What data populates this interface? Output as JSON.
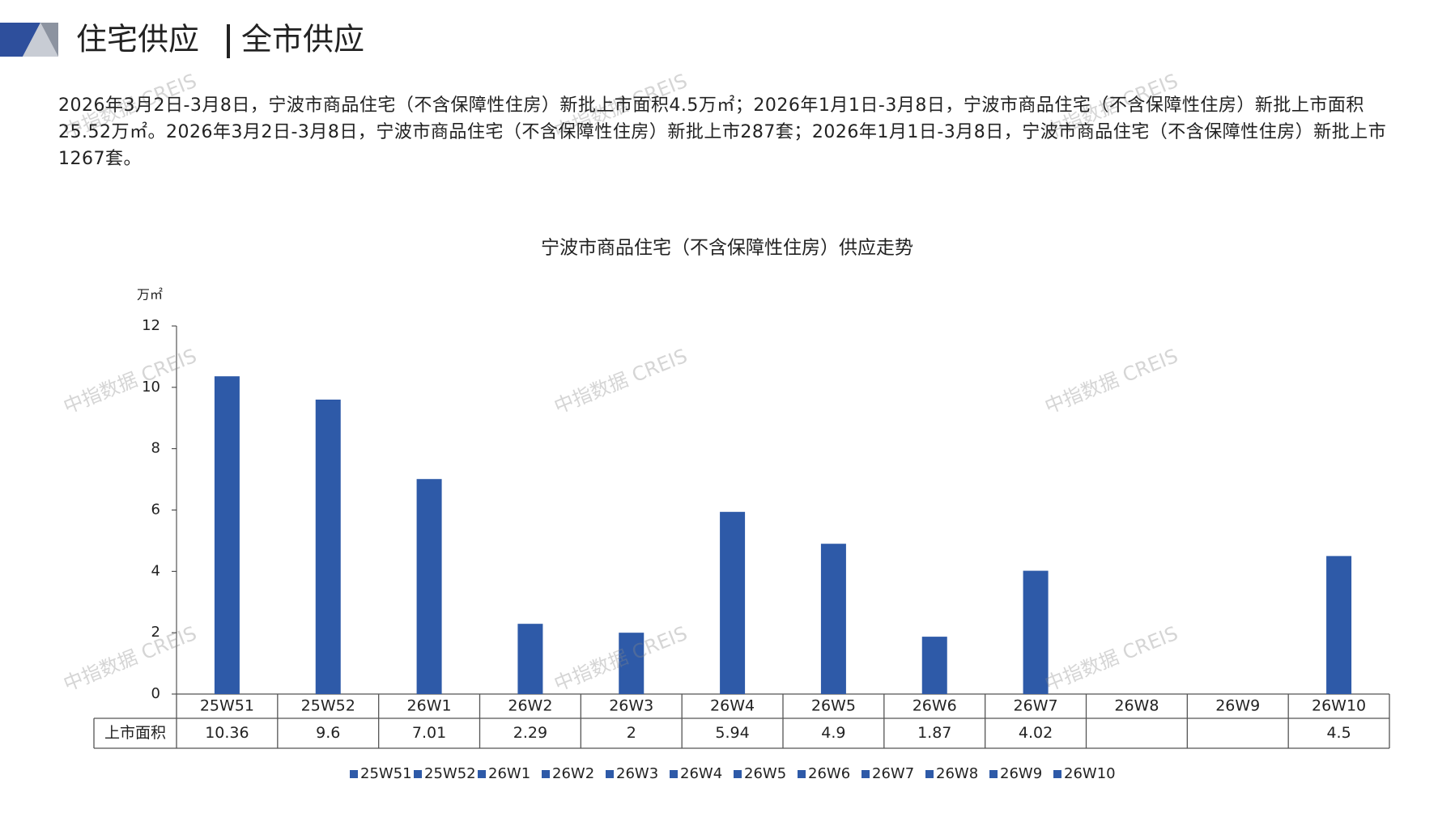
{
  "header": {
    "title_left": "住宅供应",
    "title_right": "全市供应"
  },
  "paragraph": "2026年3月2日-3月8日，宁波市商品住宅（不含保障性住房）新批上市面积4.5万㎡；2026年1月1日-3月8日，宁波市商品住宅（不含保障性住房）新批上市面积25.52万㎡。2026年3月2日-3月8日，宁波市商品住宅（不含保障性住房）新批上市287套；2026年1月1日-3月8日，宁波市商品住宅（不含保障性住房）新批上市1267套。",
  "watermark": "中指数据 CREIS",
  "chart_data": {
    "type": "bar",
    "title": "宁波市商品住宅（不含保障性住房）供应走势",
    "y_unit": "万㎡",
    "series_name": "上市面积",
    "categories": [
      "25W51",
      "25W52",
      "26W1",
      "26W2",
      "26W3",
      "26W4",
      "26W5",
      "26W6",
      "26W7",
      "26W8",
      "26W9",
      "26W10"
    ],
    "values": [
      10.36,
      9.6,
      7.01,
      2.29,
      2,
      5.94,
      4.9,
      1.87,
      4.02,
      null,
      null,
      4.5
    ],
    "color": "#2e5aa8",
    "ylim": [
      0,
      12
    ],
    "yticks": [
      0,
      2,
      4,
      6,
      8,
      10,
      12
    ],
    "grid": false,
    "legend": "bottom"
  }
}
